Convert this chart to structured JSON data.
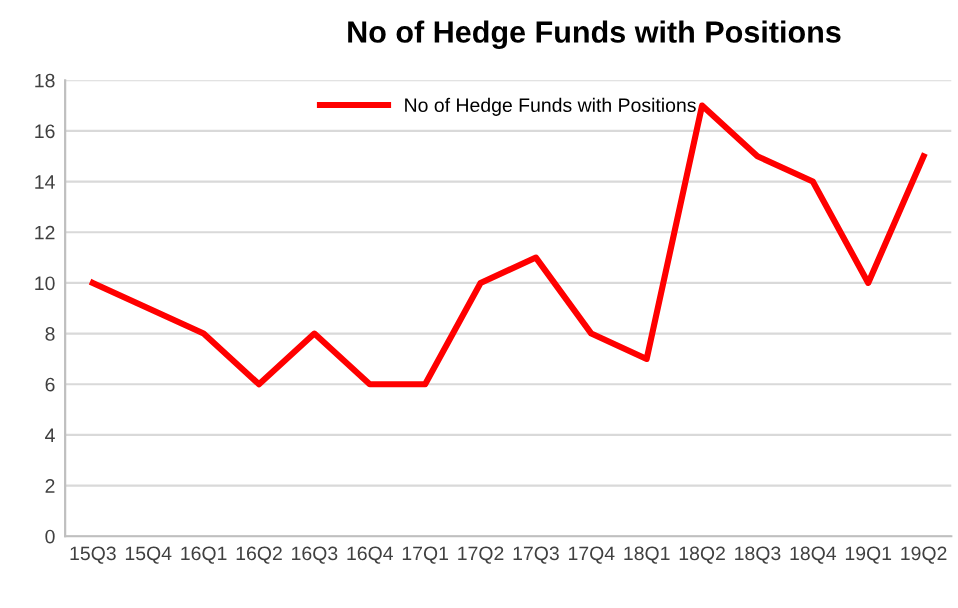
{
  "chart_data": {
    "type": "line",
    "title": "No of Hedge Funds with Positions",
    "categories": [
      "15Q3",
      "15Q4",
      "16Q1",
      "16Q2",
      "16Q3",
      "16Q4",
      "17Q1",
      "17Q2",
      "17Q3",
      "17Q4",
      "18Q1",
      "18Q2",
      "18Q3",
      "18Q4",
      "19Q1",
      "19Q2"
    ],
    "series": [
      {
        "name": "No of Hedge Funds with Positions",
        "color": "#ff0000",
        "values": [
          10,
          9,
          8,
          6,
          8,
          6,
          6,
          10,
          11,
          8,
          7,
          17,
          15,
          14,
          10,
          15
        ]
      }
    ],
    "ylim": [
      0,
      18
    ],
    "yticks": [
      0,
      2,
      4,
      6,
      8,
      10,
      12,
      14,
      16,
      18
    ],
    "grid": "y",
    "legend": "top",
    "marker": "none",
    "line_style": "solid"
  }
}
